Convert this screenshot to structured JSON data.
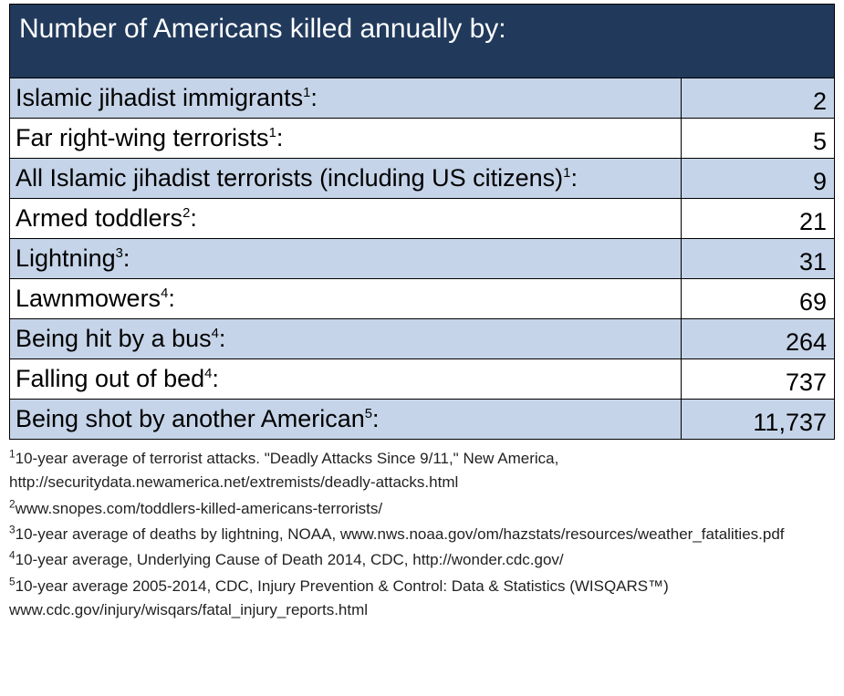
{
  "table": {
    "title": "Number of Americans killed annually by:",
    "header_bg": "#213a5c",
    "header_text_color": "#ffffff",
    "alt_row_bg": "#c5d4e8",
    "plain_row_bg": "#ffffff",
    "border_color": "#000000",
    "label_col_width": 737,
    "value_col_width": 168,
    "font_family": "Arial",
    "title_fontsize": 30,
    "cell_fontsize": 27,
    "rows": [
      {
        "label": "Islamic jihadist immigrants",
        "sup": "1",
        "value": "2",
        "alt": true
      },
      {
        "label": "Far right-wing terrorists",
        "sup": "1",
        "value": "5",
        "alt": false
      },
      {
        "label": "All Islamic jihadist terrorists (including US citizens)",
        "sup": "1",
        "value": "9",
        "alt": true
      },
      {
        "label": "Armed toddlers",
        "sup": "2",
        "value": "21",
        "alt": false
      },
      {
        "label": "Lightning",
        "sup": "3",
        "value": "31",
        "alt": true
      },
      {
        "label": "Lawnmowers",
        "sup": "4",
        "value": "69",
        "alt": false
      },
      {
        "label": "Being hit by a bus",
        "sup": "4",
        "value": "264",
        "alt": true
      },
      {
        "label": "Falling out of bed",
        "sup": "4",
        "value": "737",
        "alt": false
      },
      {
        "label": "Being shot by another American",
        "sup": "5",
        "value": "11,737",
        "alt": true
      }
    ]
  },
  "footnotes": {
    "fontsize": 17,
    "color": "#222222",
    "items": [
      {
        "sup": "1",
        "text": "10-year average of terrorist attacks. \"Deadly Attacks Since 9/11,\" New America, http://securitydata.newamerica.net/extremists/deadly-attacks.html"
      },
      {
        "sup": "2",
        "text": "www.snopes.com/toddlers-killed-americans-terrorists/"
      },
      {
        "sup": "3",
        "text": "10-year average of deaths by lightning, NOAA, www.nws.noaa.gov/om/hazstats/resources/weather_fatalities.pdf"
      },
      {
        "sup": "4",
        "text": "10-year average, Underlying Cause of Death 2014, CDC, http://wonder.cdc.gov/"
      },
      {
        "sup": "5",
        "text": "10-year average 2005-2014, CDC, Injury Prevention & Control: Data & Statistics (WISQARS™) www.cdc.gov/injury/wisqars/fatal_injury_reports.html"
      }
    ]
  }
}
